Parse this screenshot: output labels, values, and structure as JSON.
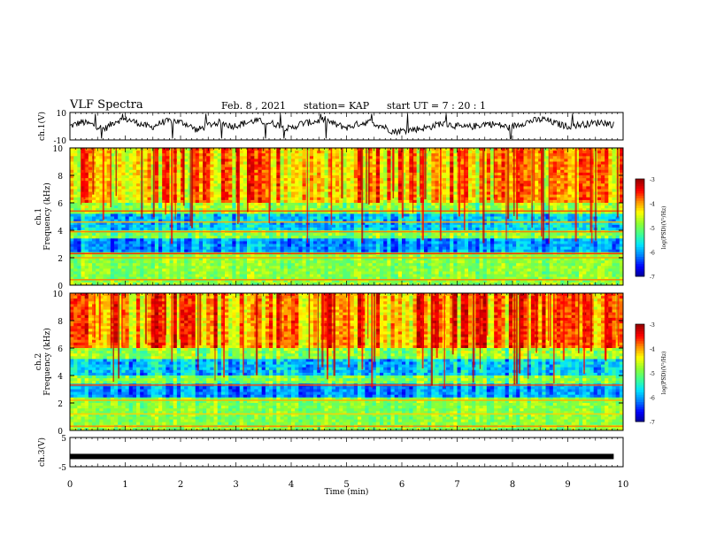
{
  "header": {
    "title": "VLF Spectra",
    "date": "Feb. 8 , 2021",
    "station": "station= KAP",
    "start_time": "start UT =  7 : 20 : 1"
  },
  "chart_data": [
    {
      "type": "line",
      "panel": "ch1-waveform",
      "ylabel": "ch.1(V)",
      "ylim": [
        -10,
        10
      ],
      "yticks": [
        "10",
        "-10"
      ],
      "xlim": [
        0,
        10
      ],
      "y_approx": [
        0,
        3,
        1,
        -2,
        4,
        5,
        2,
        -1,
        3,
        4,
        2,
        -3,
        1,
        3,
        0,
        2,
        4,
        3,
        1,
        -2,
        2,
        3,
        5,
        1,
        -1,
        2,
        3,
        0,
        -4,
        -3,
        -2,
        -1,
        2,
        1,
        -1,
        0,
        2,
        1,
        -1,
        2,
        4,
        5,
        2,
        0,
        1,
        2,
        3,
        1
      ],
      "color": "#000000"
    },
    {
      "type": "heatmap",
      "panel": "ch1-spectrogram",
      "ylabel": "ch.1\nFrequency (kHz)",
      "ylim": [
        0,
        10
      ],
      "yticks": [
        "0",
        "2",
        "4",
        "6",
        "8",
        "10"
      ],
      "xlim": [
        0,
        10
      ],
      "colorbar": {
        "label": "log(PSD)(V²/Hz)",
        "range": [
          -7,
          -3
        ],
        "ticks": [
          "-3",
          "-4",
          "-5",
          "-6",
          "-7"
        ]
      }
    },
    {
      "type": "heatmap",
      "panel": "ch2-spectrogram",
      "ylabel": "ch.2\nFrequency (kHz)",
      "ylim": [
        0,
        10
      ],
      "yticks": [
        "0",
        "2",
        "4",
        "6",
        "8",
        "10"
      ],
      "xlim": [
        0,
        10
      ],
      "colorbar": {
        "label": "log(PSD)(V²/Hz)",
        "range": [
          -7,
          -3
        ],
        "ticks": [
          "-3",
          "-4",
          "-5",
          "-6",
          "-7"
        ]
      }
    },
    {
      "type": "line",
      "panel": "ch3-waveform",
      "ylabel": "ch.3(V)",
      "ylim": [
        -5,
        5
      ],
      "yticks": [
        "5",
        "-5"
      ],
      "xlim": [
        0,
        10
      ],
      "y_approx": [
        -1.5,
        -1.5
      ],
      "color": "#000000"
    }
  ],
  "xaxis": {
    "label": "Time (min)",
    "ticks": [
      "0",
      "1",
      "2",
      "3",
      "4",
      "5",
      "6",
      "7",
      "8",
      "9",
      "10"
    ]
  },
  "colors": {
    "jet": [
      "#00008f",
      "#0000ff",
      "#0080ff",
      "#00e5ff",
      "#40ff90",
      "#90ff30",
      "#ffff00",
      "#ff9000",
      "#ff0000",
      "#9a0000"
    ]
  }
}
